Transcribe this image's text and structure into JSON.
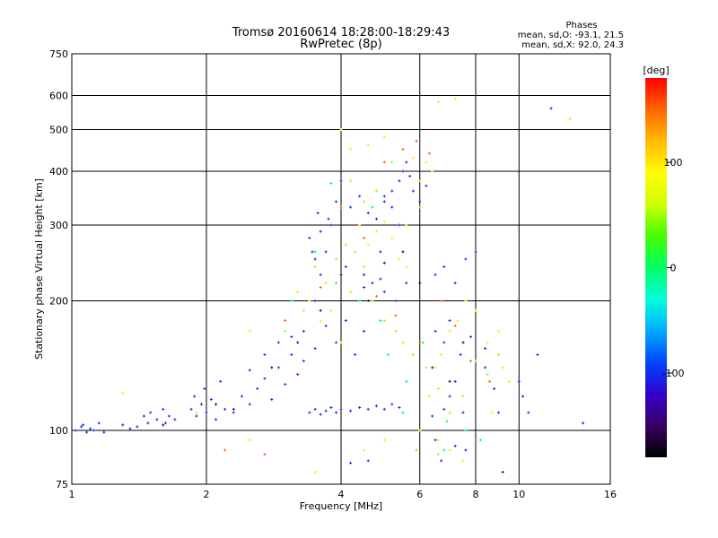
{
  "chart_data": {
    "type": "scatter",
    "title": "Tromsø 20160614 18:28:00-18:29:43",
    "subtitle": "RwPretec (8p)",
    "xlabel": "Frequency [MHz]",
    "ylabel": "Stationary phase Virtual Height [km]",
    "xscale": "log",
    "yscale": "log",
    "xlim": [
      1,
      16
    ],
    "ylim": [
      75,
      750
    ],
    "grid": true,
    "x_ticks": [
      {
        "value": 1,
        "label": "1"
      },
      {
        "value": 2,
        "label": "2"
      },
      {
        "value": 4,
        "label": "4"
      },
      {
        "value": 6,
        "label": "6"
      },
      {
        "value": 8,
        "label": "8"
      },
      {
        "value": 10,
        "label": "10"
      },
      {
        "value": 16,
        "label": "16"
      }
    ],
    "x_grid": [
      2,
      4,
      6,
      8,
      10
    ],
    "y_ticks": [
      {
        "value": 75,
        "label": "75"
      },
      {
        "value": 100,
        "label": "100"
      },
      {
        "value": 200,
        "label": "200"
      },
      {
        "value": 300,
        "label": "300"
      },
      {
        "value": 400,
        "label": "400"
      },
      {
        "value": 500,
        "label": "500"
      },
      {
        "value": 600,
        "label": "600"
      },
      {
        "value": 750,
        "label": "750"
      }
    ],
    "y_grid": [
      100,
      200,
      300,
      400,
      500,
      600
    ],
    "stats_title": "Phases",
    "stats": [
      "mean, sd,O: -93.1, 21.5",
      "mean, sd,X:  92.0, 24.3"
    ],
    "colorbar": {
      "label": "[deg]",
      "range": [
        -180,
        180
      ],
      "ticks": [
        {
          "value": 100,
          "label": "100"
        },
        {
          "value": 0,
          "label": "0"
        },
        {
          "value": -100,
          "label": "-100"
        }
      ],
      "colormap": [
        "#000000",
        "#3a0063",
        "#3300cc",
        "#0044ff",
        "#00aaff",
        "#00ffdd",
        "#00ff66",
        "#44ff00",
        "#ccff00",
        "#ffff00",
        "#ffbb00",
        "#ff6600",
        "#ff0000"
      ]
    },
    "series": [
      {
        "phase": -100,
        "points": [
          [
            1.02,
            100
          ],
          [
            1.05,
            102
          ],
          [
            1.08,
            99
          ],
          [
            1.1,
            101
          ],
          [
            1.12,
            100
          ],
          [
            1.15,
            104
          ],
          [
            1.06,
            103
          ],
          [
            1.18,
            99
          ],
          [
            1.3,
            103
          ],
          [
            1.35,
            101
          ],
          [
            1.4,
            102
          ],
          [
            1.45,
            108
          ],
          [
            1.5,
            110
          ],
          [
            1.55,
            106
          ],
          [
            1.6,
            112
          ],
          [
            1.65,
            108
          ],
          [
            1.7,
            106
          ],
          [
            1.62,
            104
          ],
          [
            1.48,
            104
          ],
          [
            1.85,
            112
          ],
          [
            1.9,
            108
          ],
          [
            1.95,
            115
          ],
          [
            2.0,
            110
          ],
          [
            2.05,
            118
          ],
          [
            2.1,
            106
          ],
          [
            1.88,
            120
          ],
          [
            1.98,
            125
          ],
          [
            2.15,
            130
          ],
          [
            2.2,
            112
          ],
          [
            2.3,
            110
          ],
          [
            2.4,
            120
          ],
          [
            2.5,
            115
          ],
          [
            2.6,
            125
          ],
          [
            2.7,
            132
          ],
          [
            2.8,
            118
          ],
          [
            2.9,
            140
          ],
          [
            3.0,
            128
          ],
          [
            3.1,
            150
          ],
          [
            3.2,
            135
          ],
          [
            3.3,
            145
          ],
          [
            3.4,
            110
          ],
          [
            3.5,
            112
          ],
          [
            3.6,
            109
          ],
          [
            3.7,
            111
          ],
          [
            3.8,
            113
          ],
          [
            3.9,
            110
          ],
          [
            4.0,
            112
          ],
          [
            4.2,
            111
          ],
          [
            4.4,
            113
          ],
          [
            4.6,
            112
          ],
          [
            4.8,
            114
          ],
          [
            5.0,
            112
          ],
          [
            5.2,
            115
          ],
          [
            5.4,
            113
          ],
          [
            2.5,
            138
          ],
          [
            2.7,
            150
          ],
          [
            2.9,
            160
          ],
          [
            3.1,
            165
          ],
          [
            3.3,
            170
          ],
          [
            3.5,
            155
          ],
          [
            3.7,
            175
          ],
          [
            3.9,
            160
          ],
          [
            4.1,
            180
          ],
          [
            4.3,
            150
          ],
          [
            4.5,
            170
          ],
          [
            3.5,
            200
          ],
          [
            3.6,
            230
          ],
          [
            3.7,
            260
          ],
          [
            3.8,
            300
          ],
          [
            3.9,
            340
          ],
          [
            4.0,
            380
          ],
          [
            4.2,
            330
          ],
          [
            4.4,
            350
          ],
          [
            4.6,
            320
          ],
          [
            4.8,
            310
          ],
          [
            5.0,
            340
          ],
          [
            5.2,
            360
          ],
          [
            5.4,
            300
          ],
          [
            3.4,
            280
          ],
          [
            3.45,
            260
          ],
          [
            3.5,
            250
          ],
          [
            3.55,
            320
          ],
          [
            3.6,
            290
          ],
          [
            3.75,
            310
          ],
          [
            4.1,
            240
          ],
          [
            4.5,
            230
          ],
          [
            4.9,
            260
          ],
          [
            5.0,
            350
          ],
          [
            5.2,
            330
          ],
          [
            5.4,
            380
          ],
          [
            5.5,
            400
          ],
          [
            5.6,
            420
          ],
          [
            5.7,
            390
          ],
          [
            5.8,
            360
          ],
          [
            6.0,
            340
          ],
          [
            6.2,
            370
          ],
          [
            4.5,
            215
          ],
          [
            4.7,
            220
          ],
          [
            4.9,
            225
          ],
          [
            5.0,
            210
          ],
          [
            5.3,
            200
          ],
          [
            5.6,
            220
          ],
          [
            6.4,
            108
          ],
          [
            6.8,
            112
          ],
          [
            7.0,
            120
          ],
          [
            7.2,
            130
          ],
          [
            7.5,
            110
          ],
          [
            6.5,
            170
          ],
          [
            6.8,
            160
          ],
          [
            7.0,
            180
          ],
          [
            7.4,
            150
          ],
          [
            7.8,
            165
          ],
          [
            8.4,
            140
          ],
          [
            6.5,
            230
          ],
          [
            6.8,
            240
          ],
          [
            7.2,
            220
          ],
          [
            7.6,
            250
          ],
          [
            8.0,
            260
          ],
          [
            8.4,
            155
          ],
          [
            8.8,
            125
          ],
          [
            9.0,
            110
          ],
          [
            5.9,
            90
          ],
          [
            6.5,
            95
          ],
          [
            7.2,
            92
          ],
          [
            6.7,
            85
          ],
          [
            7.6,
            90
          ],
          [
            10.0,
            130
          ],
          [
            10.2,
            120
          ],
          [
            10.5,
            110
          ],
          [
            11.0,
            150
          ],
          [
            11.8,
            560
          ],
          [
            13.9,
            104
          ],
          [
            4.6,
            85
          ],
          [
            4.2,
            84
          ]
        ]
      },
      {
        "phase": 100,
        "points": [
          [
            1.3,
            122
          ],
          [
            1.9,
            110
          ],
          [
            2.5,
            170
          ],
          [
            3.2,
            210
          ],
          [
            3.4,
            200
          ],
          [
            3.6,
            180
          ],
          [
            3.8,
            190
          ],
          [
            4.0,
            160
          ],
          [
            4.2,
            210
          ],
          [
            4.4,
            300
          ],
          [
            4.6,
            270
          ],
          [
            4.8,
            290
          ],
          [
            5.0,
            305
          ],
          [
            5.2,
            280
          ],
          [
            5.4,
            250
          ],
          [
            5.6,
            240
          ],
          [
            5.0,
            480
          ],
          [
            4.0,
            500
          ],
          [
            4.2,
            450
          ],
          [
            4.6,
            460
          ],
          [
            5.8,
            430
          ],
          [
            6.0,
            380
          ],
          [
            6.2,
            420
          ],
          [
            6.4,
            400
          ],
          [
            6.6,
            580
          ],
          [
            7.2,
            590
          ],
          [
            13.0,
            530
          ],
          [
            6.3,
            120
          ],
          [
            6.5,
            140
          ],
          [
            6.7,
            150
          ],
          [
            7.0,
            170
          ],
          [
            7.3,
            180
          ],
          [
            7.6,
            200
          ],
          [
            8.0,
            190
          ],
          [
            8.5,
            160
          ],
          [
            9.0,
            170
          ],
          [
            9.2,
            140
          ],
          [
            8.7,
            110
          ],
          [
            9.5,
            130
          ],
          [
            6.0,
            100
          ],
          [
            6.6,
            95
          ],
          [
            7.0,
            90
          ],
          [
            7.5,
            85
          ],
          [
            5.0,
            95
          ],
          [
            4.5,
            90
          ],
          [
            3.5,
            80
          ],
          [
            2.5,
            95
          ]
        ]
      },
      {
        "phase": 50,
        "points": [
          [
            3.0,
            170
          ],
          [
            3.3,
            190
          ],
          [
            3.5,
            240
          ],
          [
            3.7,
            220
          ],
          [
            3.9,
            250
          ],
          [
            4.1,
            270
          ],
          [
            4.3,
            260
          ],
          [
            4.5,
            240
          ],
          [
            4.7,
            200
          ],
          [
            5.0,
            180
          ],
          [
            5.3,
            170
          ],
          [
            5.5,
            160
          ],
          [
            5.8,
            150
          ],
          [
            6.2,
            140
          ],
          [
            6.6,
            125
          ],
          [
            7.0,
            110
          ],
          [
            7.5,
            120
          ],
          [
            8.0,
            145
          ],
          [
            8.5,
            135
          ],
          [
            9.0,
            150
          ],
          [
            4.2,
            380
          ],
          [
            4.5,
            340
          ],
          [
            4.8,
            360
          ],
          [
            5.2,
            420
          ],
          [
            5.6,
            300
          ],
          [
            6.0,
            330
          ],
          [
            5.9,
            90
          ],
          [
            6.6,
            88
          ]
        ]
      },
      {
        "phase": 0,
        "points": [
          [
            3.1,
            200
          ],
          [
            3.5,
            260
          ],
          [
            3.9,
            220
          ],
          [
            4.4,
            200
          ],
          [
            4.9,
            180
          ],
          [
            5.1,
            150
          ],
          [
            5.6,
            130
          ],
          [
            6.1,
            160
          ],
          [
            6.9,
            105
          ],
          [
            7.6,
            100
          ],
          [
            8.2,
            95
          ],
          [
            6.8,
            90
          ],
          [
            5.5,
            110
          ],
          [
            3.8,
            375
          ],
          [
            4.7,
            330
          ]
        ]
      },
      {
        "phase": 150,
        "points": [
          [
            3.0,
            180
          ],
          [
            3.6,
            215
          ],
          [
            4.0,
            330
          ],
          [
            4.5,
            280
          ],
          [
            5.0,
            420
          ],
          [
            5.5,
            450
          ],
          [
            5.9,
            470
          ],
          [
            6.3,
            440
          ],
          [
            6.0,
            160
          ],
          [
            6.7,
            200
          ],
          [
            7.2,
            175
          ],
          [
            7.8,
            145
          ],
          [
            8.6,
            130
          ],
          [
            2.2,
            90
          ],
          [
            2.7,
            88
          ],
          [
            4.8,
            205
          ],
          [
            5.3,
            185
          ]
        ]
      },
      {
        "phase": -150,
        "points": [
          [
            2.3,
            112
          ],
          [
            2.8,
            140
          ],
          [
            3.2,
            160
          ],
          [
            3.6,
            190
          ],
          [
            4.0,
            230
          ],
          [
            4.6,
            200
          ],
          [
            5.0,
            245
          ],
          [
            5.5,
            260
          ],
          [
            6.0,
            220
          ],
          [
            6.4,
            140
          ],
          [
            7.0,
            130
          ],
          [
            7.5,
            160
          ],
          [
            1.6,
            103
          ],
          [
            2.1,
            115
          ],
          [
            9.2,
            80
          ]
        ]
      }
    ]
  }
}
